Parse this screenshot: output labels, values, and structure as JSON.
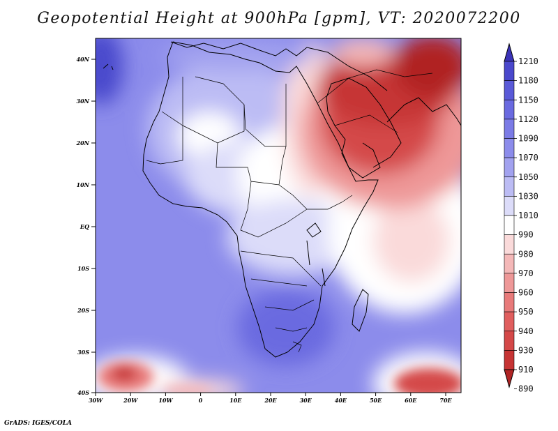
{
  "title": "Geopotential Height at 900hPa [gpm], VT: 2020072200",
  "footer": "GrADS: IGES/COLA",
  "map": {
    "lat_labels": [
      "40N",
      "30N",
      "20N",
      "10N",
      "EQ",
      "10S",
      "20S",
      "30S",
      "40S"
    ],
    "lon_labels": [
      "30W",
      "20W",
      "10W",
      "0",
      "10E",
      "20E",
      "30E",
      "40E",
      "50E",
      "60E",
      "70E"
    ]
  },
  "legend": {
    "levels": [
      "1210",
      "1180",
      "1150",
      "1120",
      "1090",
      "1070",
      "1050",
      "1030",
      "1010",
      "990",
      "980",
      "970",
      "960",
      "950",
      "940",
      "930",
      "910",
      "890"
    ],
    "colors": [
      "#3b33b8",
      "#4a48cc",
      "#5a5ad8",
      "#6a6ae0",
      "#7b7be6",
      "#8c8ceb",
      "#a2a2ef",
      "#bcbcf4",
      "#dcdcf9",
      "#ffffff",
      "#fadada",
      "#f4b8b8",
      "#ee9898",
      "#e87a7a",
      "#e05e5e",
      "#d44848",
      "#c63434",
      "#b02424"
    ]
  }
}
